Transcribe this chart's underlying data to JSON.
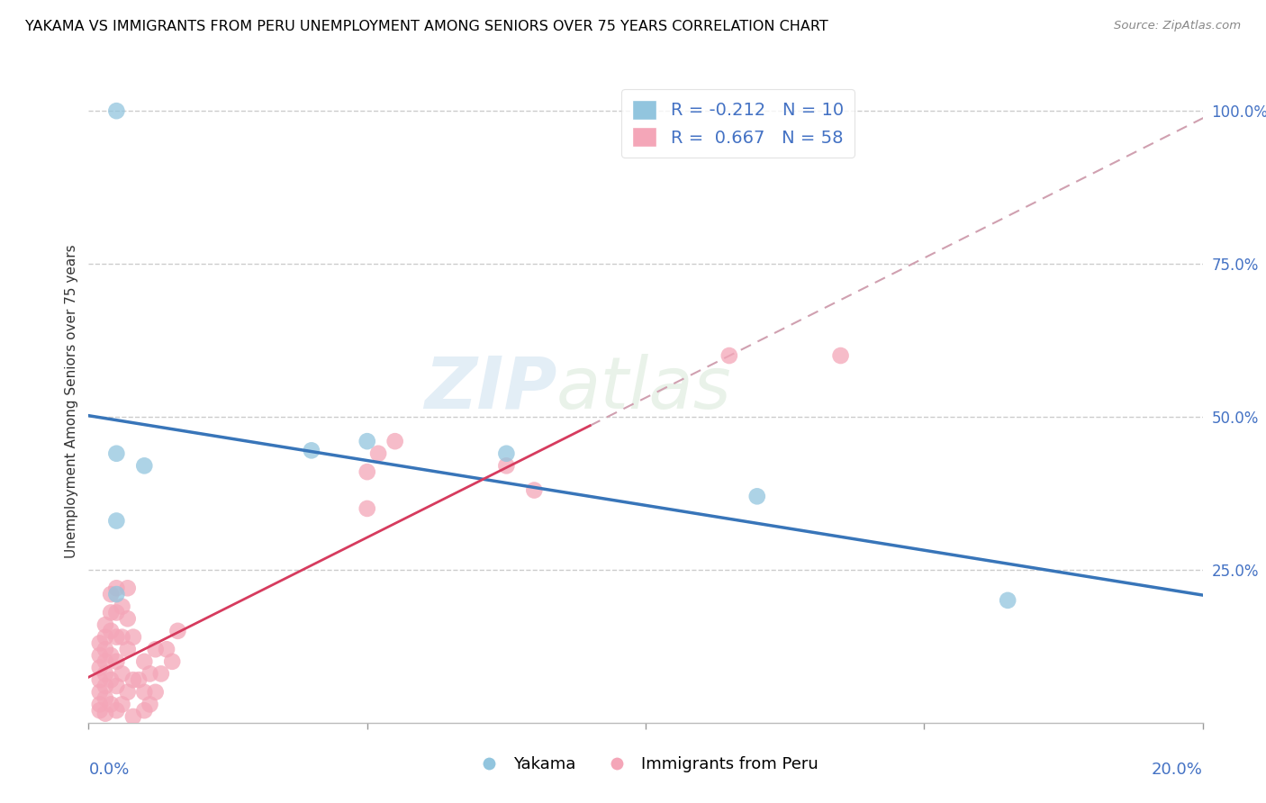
{
  "title": "YAKAMA VS IMMIGRANTS FROM PERU UNEMPLOYMENT AMONG SENIORS OVER 75 YEARS CORRELATION CHART",
  "source": "Source: ZipAtlas.com",
  "ylabel": "Unemployment Among Seniors over 75 years",
  "legend_yakama_R": "R = -0.212",
  "legend_yakama_N": "N = 10",
  "legend_peru_R": "R =  0.667",
  "legend_peru_N": "N = 58",
  "watermark_zip": "ZIP",
  "watermark_atlas": "atlas",
  "blue_color": "#92c5de",
  "pink_color": "#f4a6b8",
  "blue_line_color": "#3875b9",
  "pink_line_color": "#d63b5e",
  "dashed_line_color": "#d0a0b0",
  "grid_color": "#cccccc",
  "right_tick_color": "#4472c4",
  "yakama_points": [
    [
      0.5,
      100.0
    ],
    [
      0.5,
      44.0
    ],
    [
      1.0,
      42.0
    ],
    [
      0.5,
      33.0
    ],
    [
      0.5,
      21.0
    ],
    [
      4.0,
      44.5
    ],
    [
      5.0,
      46.0
    ],
    [
      7.5,
      44.0
    ],
    [
      12.0,
      37.0
    ],
    [
      16.5,
      20.0
    ]
  ],
  "peru_points": [
    [
      0.2,
      2.0
    ],
    [
      0.2,
      3.0
    ],
    [
      0.2,
      5.0
    ],
    [
      0.2,
      7.0
    ],
    [
      0.2,
      9.0
    ],
    [
      0.2,
      11.0
    ],
    [
      0.2,
      13.0
    ],
    [
      0.3,
      1.5
    ],
    [
      0.3,
      4.0
    ],
    [
      0.3,
      6.0
    ],
    [
      0.3,
      8.0
    ],
    [
      0.3,
      10.0
    ],
    [
      0.3,
      12.0
    ],
    [
      0.3,
      14.0
    ],
    [
      0.3,
      16.0
    ],
    [
      0.4,
      3.0
    ],
    [
      0.4,
      7.0
    ],
    [
      0.4,
      11.0
    ],
    [
      0.4,
      15.0
    ],
    [
      0.4,
      18.0
    ],
    [
      0.4,
      21.0
    ],
    [
      0.5,
      2.0
    ],
    [
      0.5,
      6.0
    ],
    [
      0.5,
      10.0
    ],
    [
      0.5,
      14.0
    ],
    [
      0.5,
      18.0
    ],
    [
      0.5,
      22.0
    ],
    [
      0.6,
      3.0
    ],
    [
      0.6,
      8.0
    ],
    [
      0.6,
      14.0
    ],
    [
      0.6,
      19.0
    ],
    [
      0.7,
      5.0
    ],
    [
      0.7,
      12.0
    ],
    [
      0.7,
      17.0
    ],
    [
      0.7,
      22.0
    ],
    [
      0.8,
      7.0
    ],
    [
      0.8,
      14.0
    ],
    [
      0.8,
      1.0
    ],
    [
      0.9,
      7.0
    ],
    [
      1.0,
      2.0
    ],
    [
      1.0,
      5.0
    ],
    [
      1.0,
      10.0
    ],
    [
      1.1,
      3.0
    ],
    [
      1.1,
      8.0
    ],
    [
      1.2,
      5.0
    ],
    [
      1.2,
      12.0
    ],
    [
      1.3,
      8.0
    ],
    [
      1.4,
      12.0
    ],
    [
      1.5,
      10.0
    ],
    [
      1.6,
      15.0
    ],
    [
      5.0,
      35.0
    ],
    [
      5.0,
      41.0
    ],
    [
      5.2,
      44.0
    ],
    [
      5.5,
      46.0
    ],
    [
      7.5,
      42.0
    ],
    [
      8.0,
      38.0
    ],
    [
      11.5,
      60.0
    ],
    [
      13.5,
      60.0
    ]
  ],
  "xlim": [
    0.0,
    20.0
  ],
  "ylim": [
    0.0,
    105.0
  ],
  "xticks": [
    0,
    5,
    10,
    15,
    20
  ],
  "yticks_right": [
    0,
    25,
    50,
    75,
    100
  ],
  "yticklabels_right": [
    "",
    "25.0%",
    "50.0%",
    "75.0%",
    "100.0%"
  ],
  "figsize": [
    14.06,
    8.92
  ],
  "dpi": 100
}
